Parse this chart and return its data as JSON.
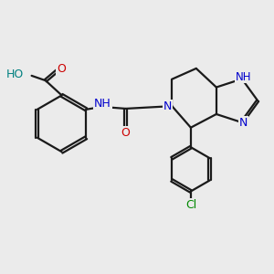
{
  "bg_color": "#ebebeb",
  "bond_color": "#1a1a1a",
  "nitrogen_color": "#0000cc",
  "oxygen_color": "#cc0000",
  "chlorine_color": "#008800",
  "hydrogen_color": "#008080",
  "line_width": 1.6,
  "figsize": [
    3.0,
    3.0
  ],
  "dpi": 100,
  "xlim": [
    0,
    10
  ],
  "ylim": [
    0,
    10
  ]
}
